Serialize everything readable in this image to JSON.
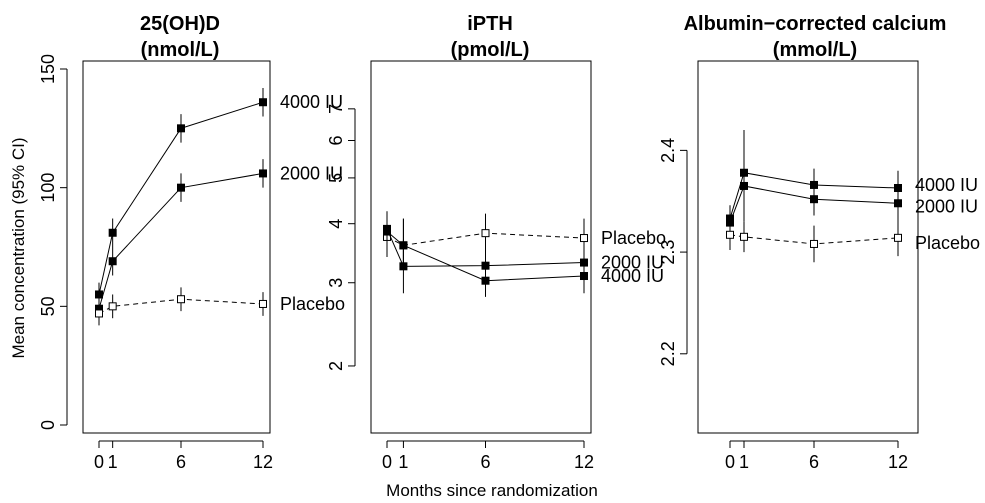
{
  "figure": {
    "ylabel": "Mean concentration (95% CI)",
    "xlabel": "Months since randomization"
  },
  "chart_data": [
    {
      "type": "line",
      "title_line1": "25(OH)D",
      "title_line2": "(nmol/L)",
      "ylim": [
        0,
        150
      ],
      "yscale": "linear",
      "yticks": [
        0,
        50,
        100,
        150
      ],
      "ytick_labels": [
        "0",
        "50",
        "100",
        "150"
      ],
      "xticks": [
        0,
        1,
        6,
        12
      ],
      "xtick_labels": [
        "0",
        "1",
        "6",
        "12"
      ],
      "series": [
        {
          "name": "4000 IU",
          "style": "solid",
          "marker": "filled-square",
          "x": [
            0,
            1,
            6,
            12
          ],
          "y": [
            55,
            81,
            125,
            136
          ],
          "ci": [
            [
              50,
              60
            ],
            [
              75,
              87
            ],
            [
              119,
              131
            ],
            [
              130,
              142
            ]
          ]
        },
        {
          "name": "2000 IU",
          "style": "solid",
          "marker": "filled-square",
          "x": [
            0,
            1,
            6,
            12
          ],
          "y": [
            49,
            69,
            100,
            106
          ],
          "ci": [
            [
              44,
              54
            ],
            [
              63,
              75
            ],
            [
              94,
              106
            ],
            [
              100,
              112
            ]
          ]
        },
        {
          "name": "Placebo",
          "style": "dashed",
          "marker": "open-square",
          "x": [
            0,
            1,
            6,
            12
          ],
          "y": [
            47,
            50,
            53,
            51
          ],
          "ci": [
            [
              42,
              52
            ],
            [
              45,
              55
            ],
            [
              48,
              58
            ],
            [
              46,
              56
            ]
          ]
        }
      ]
    },
    {
      "type": "line",
      "title_line1": "iPTH",
      "title_line2": "(pmol/L)",
      "ylim": [
        1.5,
        8.5
      ],
      "yscale": "log",
      "yticks": [
        2,
        3,
        4,
        5,
        6,
        7
      ],
      "ytick_labels": [
        "2",
        "3",
        "4",
        "5",
        "6",
        "7"
      ],
      "xticks": [
        0,
        1,
        6,
        12
      ],
      "xtick_labels": [
        "0",
        "1",
        "6",
        "12"
      ],
      "series": [
        {
          "name": "Placebo",
          "style": "dashed",
          "marker": "open-square",
          "x": [
            0,
            1,
            6,
            12
          ],
          "y": [
            3.75,
            3.6,
            3.82,
            3.73
          ],
          "ci": [
            [
              3.4,
              4.1
            ],
            [
              3.2,
              4.1
            ],
            [
              3.45,
              4.2
            ],
            [
              3.4,
              4.1
            ]
          ]
        },
        {
          "name": "2000 IU",
          "style": "solid",
          "marker": "filled-square",
          "x": [
            0,
            1,
            6,
            12
          ],
          "y": [
            3.9,
            3.25,
            3.26,
            3.31
          ],
          "ci": [
            [
              3.55,
              4.25
            ],
            [
              2.85,
              3.7
            ],
            [
              2.95,
              3.6
            ],
            [
              3.0,
              3.65
            ]
          ]
        },
        {
          "name": "4000 IU",
          "style": "solid",
          "marker": "filled-square",
          "x": [
            0,
            1,
            6,
            12
          ],
          "y": [
            3.85,
            3.6,
            3.03,
            3.1
          ],
          "ci": [
            [
              3.5,
              4.2
            ],
            [
              3.2,
              4.1
            ],
            [
              2.8,
              3.3
            ],
            [
              2.85,
              3.35
            ]
          ]
        }
      ]
    },
    {
      "type": "line",
      "title_line1": "Albumin−corrected calcium",
      "title_line2": "(mmol/L)",
      "ylim": [
        2.13,
        2.48
      ],
      "yscale": "linear",
      "yticks": [
        2.2,
        2.3,
        2.4
      ],
      "ytick_labels": [
        "2.2",
        "2.3",
        "2.4"
      ],
      "xticks": [
        0,
        1,
        6,
        12
      ],
      "xtick_labels": [
        "0",
        "1",
        "6",
        "12"
      ],
      "series": [
        {
          "name": "4000 IU",
          "style": "solid",
          "marker": "filled-square",
          "x": [
            0,
            1,
            6,
            12
          ],
          "y": [
            2.333,
            2.378,
            2.366,
            2.363
          ],
          "ci": [
            [
              2.32,
              2.346
            ],
            [
              2.335,
              2.42
            ],
            [
              2.35,
              2.382
            ],
            [
              2.346,
              2.38
            ]
          ]
        },
        {
          "name": "2000 IU",
          "style": "solid",
          "marker": "filled-square",
          "x": [
            0,
            1,
            6,
            12
          ],
          "y": [
            2.329,
            2.365,
            2.352,
            2.348
          ],
          "ci": [
            [
              2.316,
              2.342
            ],
            [
              2.33,
              2.4
            ],
            [
              2.336,
              2.368
            ],
            [
              2.332,
              2.364
            ]
          ]
        },
        {
          "name": "Placebo",
          "style": "dashed",
          "marker": "open-square",
          "x": [
            0,
            1,
            6,
            12
          ],
          "y": [
            2.317,
            2.315,
            2.308,
            2.314
          ],
          "ci": [
            [
              2.302,
              2.332
            ],
            [
              2.3,
              2.33
            ],
            [
              2.29,
              2.326
            ],
            [
              2.296,
              2.332
            ]
          ]
        }
      ]
    }
  ]
}
